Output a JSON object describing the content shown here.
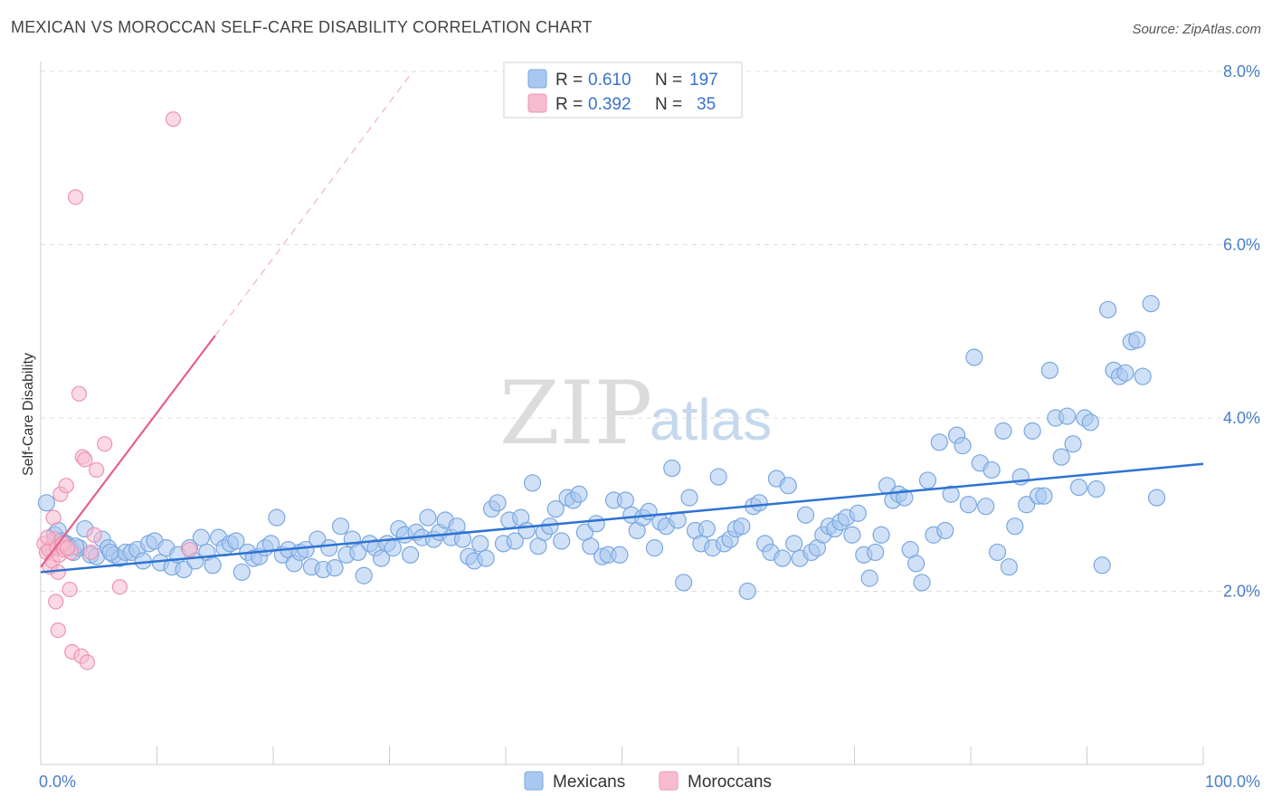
{
  "title": "MEXICAN VS MOROCCAN SELF-CARE DISABILITY CORRELATION CHART",
  "source": "Source: ZipAtlas.com",
  "colors": {
    "mexicans_fill": "#a9c8f0",
    "mexicans_stroke": "#7aa7e0",
    "mexicans_line": "#2d73d2",
    "moroccans_fill": "#f7bcd0",
    "moroccans_stroke": "#ee93b3",
    "moroccans_line": "#e4608c",
    "axis_text": "#4a7ec9",
    "grid": "#dcdcdc"
  },
  "legend": {
    "r_label": "R =",
    "n_label": "N =",
    "rows": [
      {
        "series": "Mexicans",
        "r": "0.610",
        "n": "197"
      },
      {
        "series": "Moroccans",
        "r": "0.392",
        "n": "35"
      }
    ]
  },
  "watermark": {
    "zip": "ZIP",
    "atlas": "atlas"
  },
  "chart_data": {
    "type": "scatter",
    "title": "MEXICAN VS MOROCCAN SELF-CARE DISABILITY CORRELATION CHART",
    "xlabel": "",
    "ylabel": "Self-Care Disability",
    "xlim": [
      0,
      100
    ],
    "ylim": [
      0,
      8.2
    ],
    "x_tick_labels": [
      "0.0%",
      "100.0%"
    ],
    "y_ticks": [
      2.0,
      4.0,
      6.0,
      8.0
    ],
    "y_tick_labels": [
      "2.0%",
      "4.0%",
      "6.0%",
      "8.0%"
    ],
    "grid": true,
    "legend_position": "top-center",
    "series": [
      {
        "name": "Mexicans",
        "trend": {
          "x": [
            0,
            100
          ],
          "y": [
            2.22,
            3.47
          ]
        },
        "points": [
          [
            0.5,
            3.02
          ],
          [
            1.2,
            2.65
          ],
          [
            1.5,
            2.7
          ],
          [
            1.8,
            2.58
          ],
          [
            2.2,
            2.55
          ],
          [
            2.5,
            2.5
          ],
          [
            2.8,
            2.45
          ],
          [
            3.3,
            2.5
          ],
          [
            3.8,
            2.72
          ],
          [
            4.3,
            2.42
          ],
          [
            4.8,
            2.4
          ],
          [
            5.3,
            2.6
          ],
          [
            5.8,
            2.5
          ],
          [
            6.3,
            2.42
          ],
          [
            6.8,
            2.38
          ],
          [
            7.3,
            2.45
          ],
          [
            7.8,
            2.45
          ],
          [
            8.3,
            2.48
          ],
          [
            8.8,
            2.35
          ],
          [
            9.3,
            2.55
          ],
          [
            9.8,
            2.58
          ],
          [
            10.3,
            2.33
          ],
          [
            10.8,
            2.5
          ],
          [
            11.3,
            2.28
          ],
          [
            11.8,
            2.42
          ],
          [
            12.3,
            2.25
          ],
          [
            12.8,
            2.5
          ],
          [
            13.3,
            2.35
          ],
          [
            13.8,
            2.62
          ],
          [
            14.3,
            2.45
          ],
          [
            14.8,
            2.3
          ],
          [
            15.3,
            2.62
          ],
          [
            15.8,
            2.5
          ],
          [
            16.3,
            2.55
          ],
          [
            16.8,
            2.58
          ],
          [
            17.3,
            2.22
          ],
          [
            17.8,
            2.45
          ],
          [
            18.3,
            2.38
          ],
          [
            18.8,
            2.4
          ],
          [
            19.3,
            2.5
          ],
          [
            19.8,
            2.55
          ],
          [
            20.3,
            2.85
          ],
          [
            20.8,
            2.42
          ],
          [
            21.3,
            2.48
          ],
          [
            21.8,
            2.32
          ],
          [
            22.3,
            2.45
          ],
          [
            22.8,
            2.48
          ],
          [
            23.3,
            2.28
          ],
          [
            23.8,
            2.6
          ],
          [
            24.3,
            2.25
          ],
          [
            24.8,
            2.5
          ],
          [
            25.3,
            2.27
          ],
          [
            25.8,
            2.75
          ],
          [
            26.3,
            2.42
          ],
          [
            26.8,
            2.6
          ],
          [
            27.3,
            2.45
          ],
          [
            27.8,
            2.18
          ],
          [
            28.3,
            2.55
          ],
          [
            28.8,
            2.5
          ],
          [
            29.3,
            2.38
          ],
          [
            29.8,
            2.55
          ],
          [
            30.3,
            2.5
          ],
          [
            30.8,
            2.72
          ],
          [
            31.3,
            2.65
          ],
          [
            31.8,
            2.42
          ],
          [
            32.3,
            2.68
          ],
          [
            32.8,
            2.62
          ],
          [
            33.3,
            2.85
          ],
          [
            33.8,
            2.6
          ],
          [
            34.3,
            2.68
          ],
          [
            34.8,
            2.82
          ],
          [
            35.3,
            2.62
          ],
          [
            35.8,
            2.75
          ],
          [
            36.3,
            2.6
          ],
          [
            36.8,
            2.4
          ],
          [
            37.3,
            2.35
          ],
          [
            37.8,
            2.55
          ],
          [
            38.3,
            2.38
          ],
          [
            38.8,
            2.95
          ],
          [
            39.3,
            3.02
          ],
          [
            39.8,
            2.55
          ],
          [
            40.3,
            2.82
          ],
          [
            40.8,
            2.58
          ],
          [
            41.3,
            2.85
          ],
          [
            41.8,
            2.7
          ],
          [
            42.3,
            3.25
          ],
          [
            42.8,
            2.52
          ],
          [
            43.3,
            2.68
          ],
          [
            43.8,
            2.75
          ],
          [
            44.3,
            2.95
          ],
          [
            44.8,
            2.58
          ],
          [
            45.3,
            3.08
          ],
          [
            45.8,
            3.05
          ],
          [
            46.3,
            3.12
          ],
          [
            46.8,
            2.68
          ],
          [
            47.3,
            2.52
          ],
          [
            47.8,
            2.78
          ],
          [
            48.3,
            2.4
          ],
          [
            48.8,
            2.42
          ],
          [
            49.3,
            3.05
          ],
          [
            49.8,
            2.42
          ],
          [
            50.3,
            3.05
          ],
          [
            50.8,
            2.88
          ],
          [
            51.3,
            2.7
          ],
          [
            51.8,
            2.85
          ],
          [
            52.3,
            2.92
          ],
          [
            52.8,
            2.5
          ],
          [
            53.3,
            2.8
          ],
          [
            53.8,
            2.75
          ],
          [
            54.3,
            3.42
          ],
          [
            54.8,
            2.82
          ],
          [
            55.3,
            2.1
          ],
          [
            55.8,
            3.08
          ],
          [
            56.3,
            2.7
          ],
          [
            56.8,
            2.55
          ],
          [
            57.3,
            2.72
          ],
          [
            57.8,
            2.5
          ],
          [
            58.3,
            3.32
          ],
          [
            58.8,
            2.55
          ],
          [
            59.3,
            2.6
          ],
          [
            59.8,
            2.72
          ],
          [
            60.3,
            2.75
          ],
          [
            60.8,
            2.0
          ],
          [
            61.3,
            2.98
          ],
          [
            61.8,
            3.02
          ],
          [
            62.3,
            2.55
          ],
          [
            62.8,
            2.45
          ],
          [
            63.3,
            3.3
          ],
          [
            63.8,
            2.38
          ],
          [
            64.3,
            3.22
          ],
          [
            64.8,
            2.55
          ],
          [
            65.3,
            2.38
          ],
          [
            65.8,
            2.88
          ],
          [
            66.3,
            2.45
          ],
          [
            66.8,
            2.5
          ],
          [
            67.3,
            2.65
          ],
          [
            67.8,
            2.75
          ],
          [
            68.3,
            2.72
          ],
          [
            68.8,
            2.8
          ],
          [
            69.3,
            2.85
          ],
          [
            69.8,
            2.65
          ],
          [
            70.3,
            2.9
          ],
          [
            70.8,
            2.42
          ],
          [
            71.3,
            2.15
          ],
          [
            71.8,
            2.45
          ],
          [
            72.3,
            2.65
          ],
          [
            72.8,
            3.22
          ],
          [
            73.3,
            3.05
          ],
          [
            73.8,
            3.12
          ],
          [
            74.3,
            3.08
          ],
          [
            74.8,
            2.48
          ],
          [
            75.3,
            2.32
          ],
          [
            75.8,
            2.1
          ],
          [
            76.3,
            3.28
          ],
          [
            76.8,
            2.65
          ],
          [
            77.3,
            3.72
          ],
          [
            77.8,
            2.7
          ],
          [
            78.3,
            3.12
          ],
          [
            78.8,
            3.8
          ],
          [
            79.3,
            3.68
          ],
          [
            79.8,
            3.0
          ],
          [
            80.3,
            4.7
          ],
          [
            80.8,
            3.48
          ],
          [
            81.3,
            2.98
          ],
          [
            81.8,
            3.4
          ],
          [
            82.3,
            2.45
          ],
          [
            82.8,
            3.85
          ],
          [
            83.3,
            2.28
          ],
          [
            83.8,
            2.75
          ],
          [
            84.3,
            3.32
          ],
          [
            84.8,
            3.0
          ],
          [
            85.3,
            3.85
          ],
          [
            85.8,
            3.1
          ],
          [
            86.3,
            3.1
          ],
          [
            86.8,
            4.55
          ],
          [
            87.3,
            4.0
          ],
          [
            87.8,
            3.55
          ],
          [
            88.3,
            4.02
          ],
          [
            88.8,
            3.7
          ],
          [
            89.3,
            3.2
          ],
          [
            89.8,
            4.0
          ],
          [
            90.3,
            3.95
          ],
          [
            90.8,
            3.18
          ],
          [
            91.3,
            2.3
          ],
          [
            91.8,
            5.25
          ],
          [
            92.3,
            4.55
          ],
          [
            92.8,
            4.48
          ],
          [
            93.3,
            4.52
          ],
          [
            93.8,
            4.88
          ],
          [
            94.3,
            4.9
          ],
          [
            94.8,
            4.48
          ],
          [
            95.5,
            5.32
          ],
          [
            96.0,
            3.08
          ],
          [
            2.0,
            2.55
          ],
          [
            3.0,
            2.52
          ],
          [
            1.0,
            2.5
          ],
          [
            6.0,
            2.45
          ]
        ]
      },
      {
        "name": "Moroccans",
        "trend_solid": {
          "x": [
            0,
            15
          ],
          "y": [
            2.28,
            4.95
          ]
        },
        "trend_dashed": {
          "x": [
            15,
            32
          ],
          "y": [
            4.95,
            8.0
          ]
        },
        "points": [
          [
            0.3,
            2.55
          ],
          [
            0.5,
            2.45
          ],
          [
            0.7,
            2.48
          ],
          [
            0.8,
            2.28
          ],
          [
            1.0,
            2.35
          ],
          [
            1.2,
            2.6
          ],
          [
            1.4,
            2.5
          ],
          [
            1.6,
            2.42
          ],
          [
            1.8,
            2.52
          ],
          [
            2.0,
            2.48
          ],
          [
            1.1,
            2.85
          ],
          [
            1.5,
            2.22
          ],
          [
            1.7,
            3.12
          ],
          [
            2.2,
            3.22
          ],
          [
            2.6,
            2.45
          ],
          [
            3.0,
            6.55
          ],
          [
            3.3,
            4.28
          ],
          [
            3.6,
            3.55
          ],
          [
            3.8,
            3.52
          ],
          [
            4.3,
            2.45
          ],
          [
            4.6,
            2.65
          ],
          [
            4.8,
            3.4
          ],
          [
            5.5,
            3.7
          ],
          [
            6.8,
            2.05
          ],
          [
            11.4,
            7.45
          ],
          [
            12.8,
            2.48
          ],
          [
            1.3,
            1.88
          ],
          [
            2.5,
            2.02
          ],
          [
            1.5,
            1.55
          ],
          [
            2.7,
            1.3
          ],
          [
            3.5,
            1.25
          ],
          [
            4.0,
            1.18
          ],
          [
            0.6,
            2.62
          ],
          [
            1.9,
            2.55
          ],
          [
            2.3,
            2.5
          ]
        ]
      }
    ]
  },
  "bottom_legend": [
    "Mexicans",
    "Moroccans"
  ]
}
